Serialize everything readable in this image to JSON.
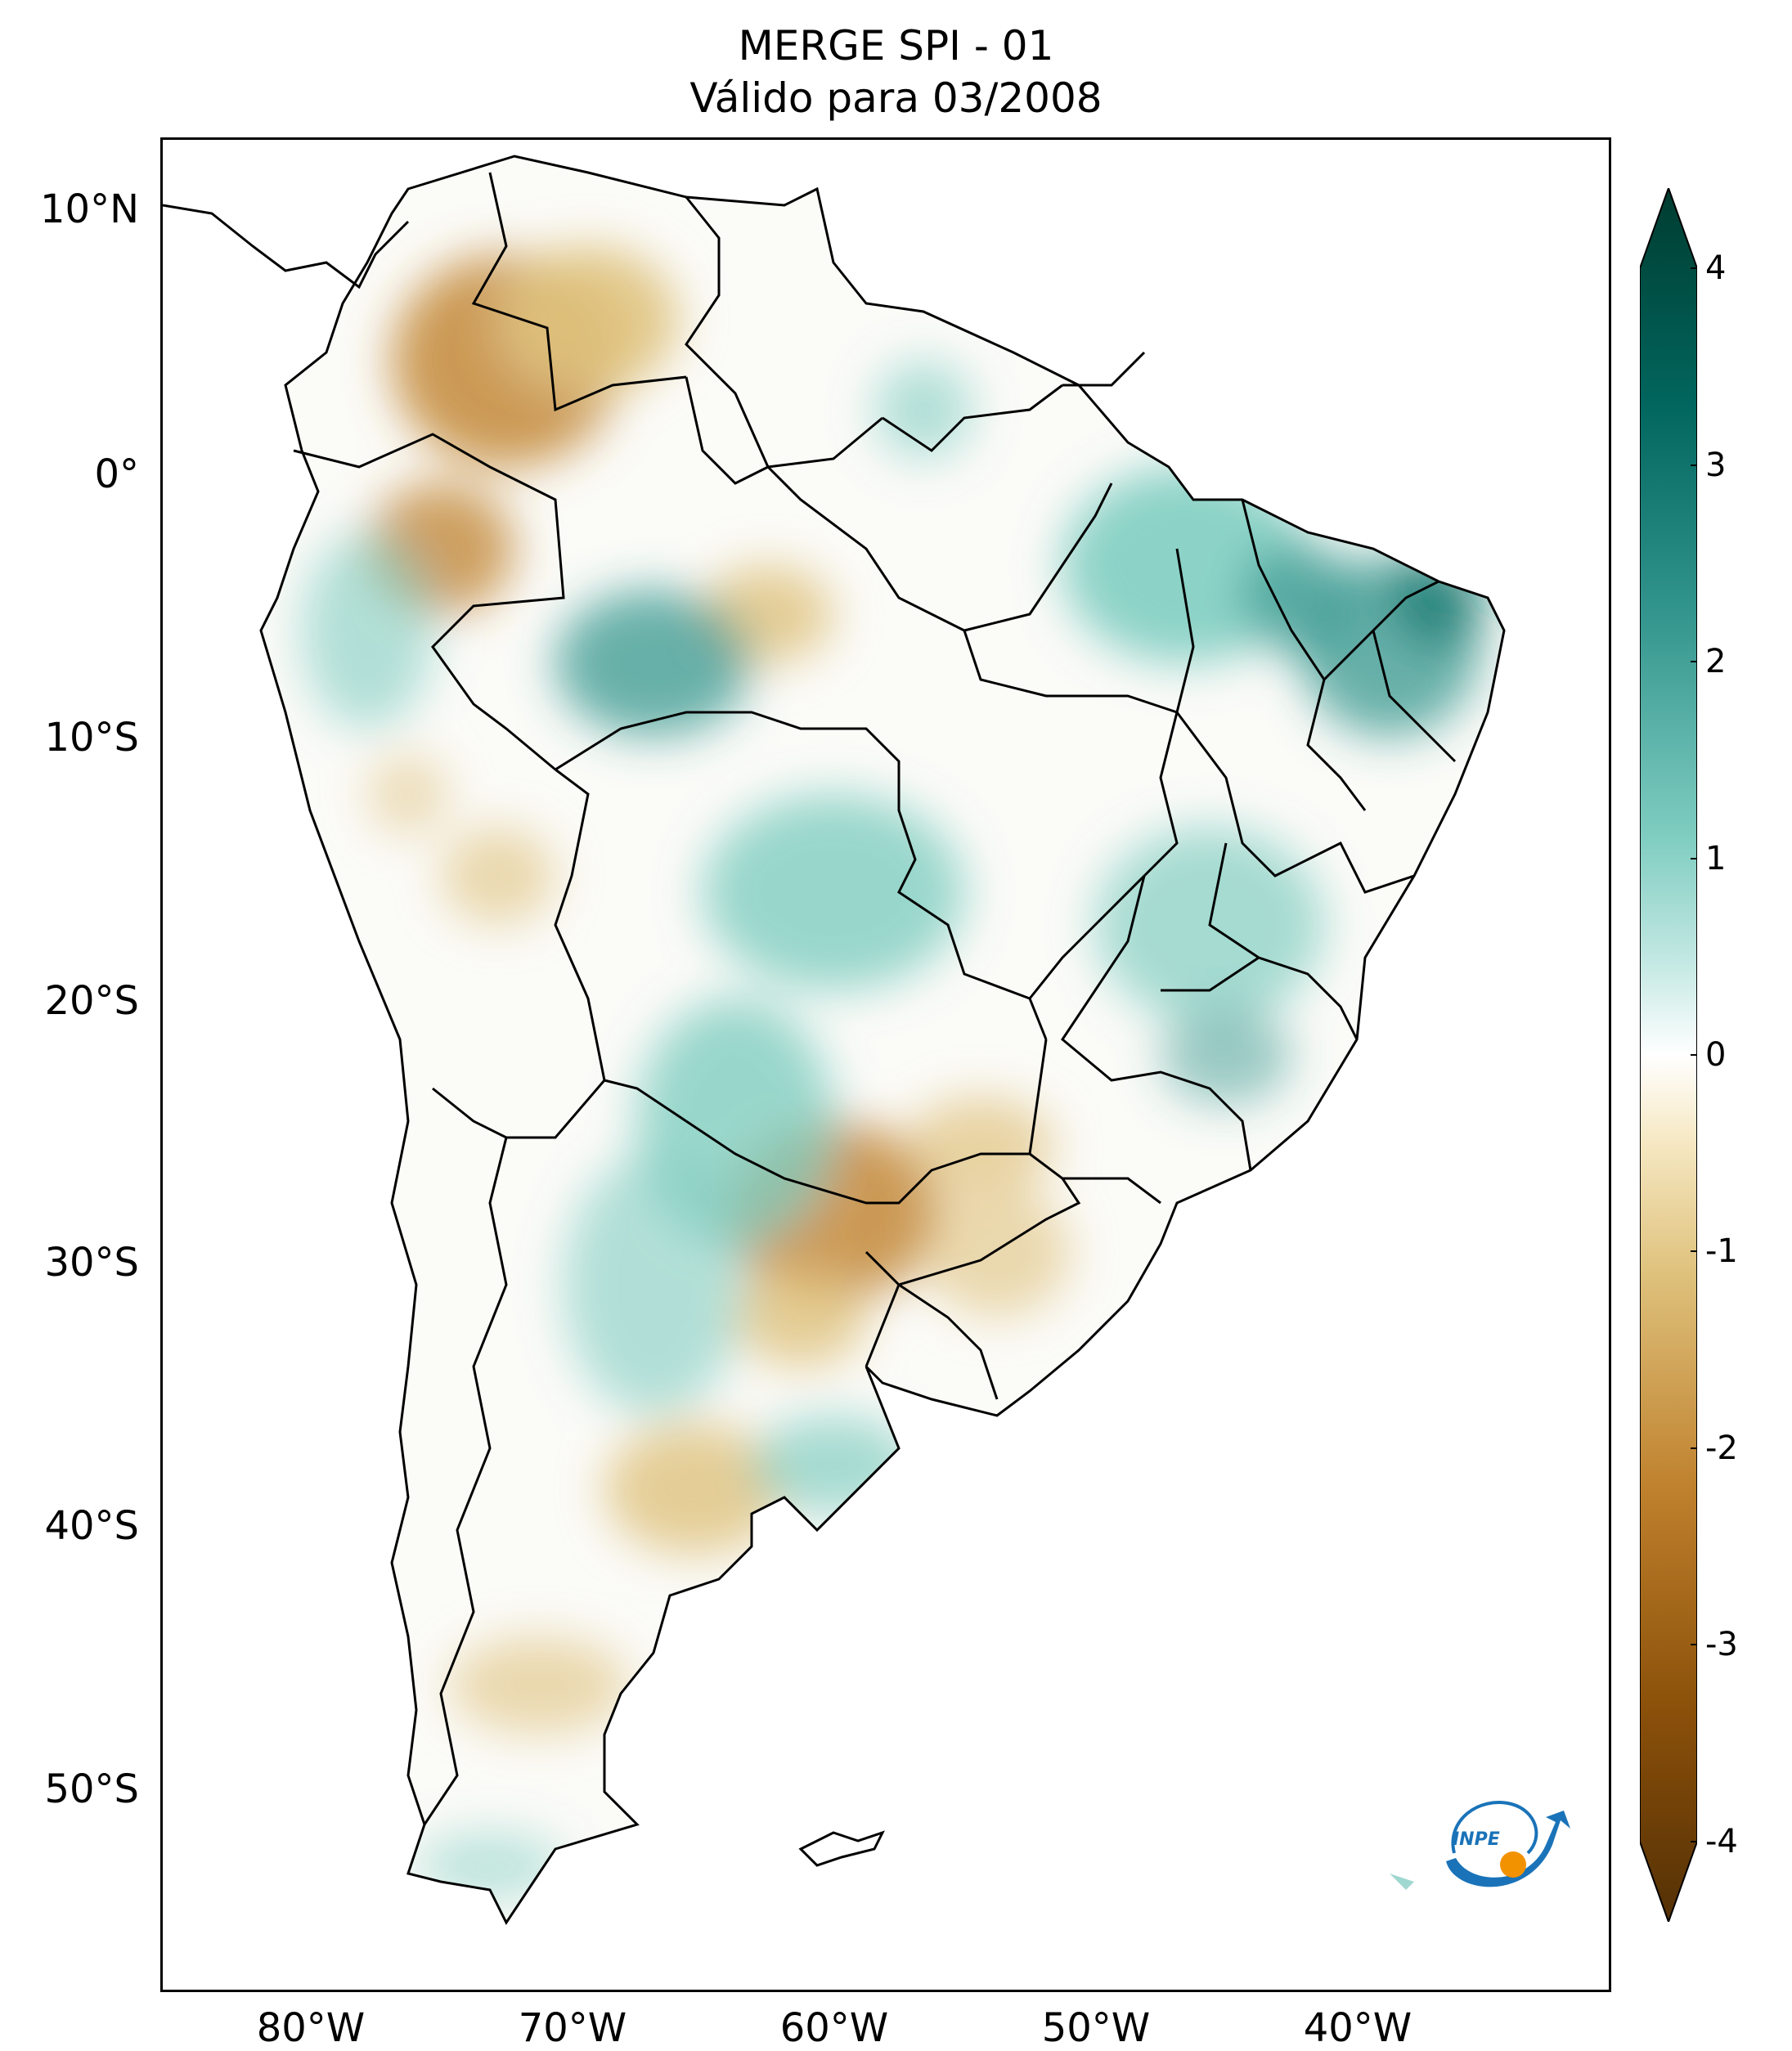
{
  "title": {
    "line1": "MERGE   SPI - 01",
    "line2": "Válido para 03/2008"
  },
  "axes": {
    "lat_labels": [
      "10°N",
      "0°",
      "10°S",
      "20°S",
      "30°S",
      "40°S",
      "50°S"
    ],
    "lon_labels": [
      "80°W",
      "70°W",
      "60°W",
      "50°W",
      "40°W"
    ]
  },
  "colorbar": {
    "tick_labels": [
      "4",
      "3",
      "2",
      "1",
      "0",
      "-1",
      "-2",
      "-3",
      "-4"
    ],
    "colors": {
      "minus4": "#543005",
      "minus3": "#8c510a",
      "minus2": "#bf812d",
      "minus1": "#dfc27d",
      "minus05": "#f6e8c3",
      "zero": "#ffffff",
      "plus05": "#c7eae5",
      "plus1": "#80cdc1",
      "plus2": "#35978f",
      "plus3": "#01665e",
      "plus4": "#003c30"
    }
  },
  "logo": {
    "text": "INPE",
    "colors": {
      "arc": "#1a73b8",
      "dot": "#f39200"
    }
  }
}
